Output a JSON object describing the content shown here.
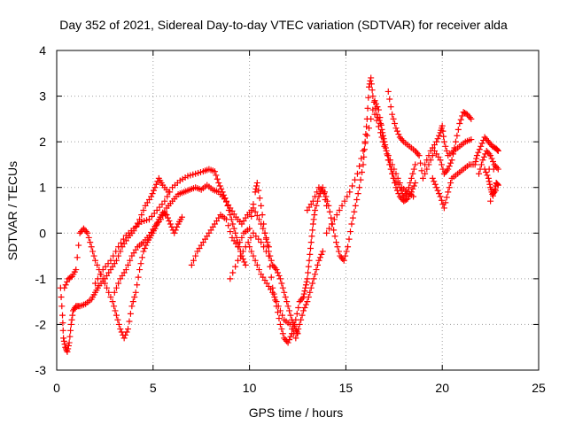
{
  "chart_data": {
    "type": "scatter",
    "title": "Day 352 of 2021, Sidereal Day-to-day VTEC variation (SDTVAR) for receiver alda",
    "xlabel": "GPS time / hours",
    "ylabel": "SDTVAR / TECUs",
    "xlim": [
      0,
      25
    ],
    "ylim": [
      -3,
      4
    ],
    "xticks": [
      "0",
      "5",
      "10",
      "15",
      "20",
      "25"
    ],
    "yticks": [
      "-3",
      "-2",
      "-1",
      "0",
      "1",
      "2",
      "3",
      "4"
    ],
    "grid": true,
    "marker": "+",
    "color": "#ff0000",
    "series": [
      {
        "name": "SDTVAR",
        "points": [
          [
            0.2,
            -1.2
          ],
          [
            0.3,
            -1.8
          ],
          [
            0.35,
            -2.3
          ],
          [
            0.45,
            -2.5
          ],
          [
            0.55,
            -2.6
          ],
          [
            0.65,
            -2.4
          ],
          [
            0.75,
            -2.0
          ],
          [
            0.85,
            -1.7
          ],
          [
            1.0,
            -1.6
          ],
          [
            1.2,
            -1.6
          ],
          [
            1.5,
            -1.55
          ],
          [
            1.8,
            -1.45
          ],
          [
            2.0,
            -1.3
          ],
          [
            2.2,
            -1.15
          ],
          [
            2.5,
            -1.0
          ],
          [
            2.8,
            -0.8
          ],
          [
            3.1,
            -0.6
          ],
          [
            3.4,
            -0.3
          ],
          [
            3.7,
            -0.1
          ],
          [
            4.0,
            0.05
          ],
          [
            4.3,
            0.3
          ],
          [
            4.6,
            0.6
          ],
          [
            4.9,
            0.8
          ],
          [
            5.1,
            1.0
          ],
          [
            5.3,
            1.2
          ],
          [
            5.5,
            1.05
          ],
          [
            5.8,
            0.9
          ],
          [
            0.4,
            -1.2
          ],
          [
            0.6,
            -1.0
          ],
          [
            0.8,
            -0.95
          ],
          [
            1.0,
            -0.8
          ],
          [
            1.2,
            0.0
          ],
          [
            1.4,
            0.1
          ],
          [
            1.6,
            0.0
          ],
          [
            1.8,
            -0.3
          ],
          [
            2.0,
            -0.6
          ],
          [
            2.3,
            -0.9
          ],
          [
            2.6,
            -1.2
          ],
          [
            2.9,
            -1.5
          ],
          [
            3.1,
            -1.8
          ],
          [
            3.3,
            -2.1
          ],
          [
            3.5,
            -2.3
          ],
          [
            3.7,
            -2.1
          ],
          [
            3.9,
            -1.6
          ],
          [
            4.1,
            -1.3
          ],
          [
            4.3,
            -0.8
          ],
          [
            4.5,
            -0.4
          ],
          [
            4.7,
            -0.2
          ],
          [
            4.9,
            -0.05
          ],
          [
            5.1,
            0.1
          ],
          [
            5.3,
            0.3
          ],
          [
            5.5,
            0.45
          ],
          [
            5.7,
            0.4
          ],
          [
            5.9,
            0.2
          ],
          [
            6.1,
            0.0
          ],
          [
            6.3,
            0.2
          ],
          [
            6.5,
            0.35
          ],
          [
            2.0,
            -1.1
          ],
          [
            2.4,
            -0.8
          ],
          [
            2.8,
            -0.6
          ],
          [
            3.2,
            -0.3
          ],
          [
            3.6,
            -0.05
          ],
          [
            4.0,
            0.1
          ],
          [
            4.4,
            0.25
          ],
          [
            4.8,
            0.3
          ],
          [
            5.2,
            0.5
          ],
          [
            5.6,
            0.7
          ],
          [
            6.0,
            1.0
          ],
          [
            6.4,
            1.15
          ],
          [
            6.8,
            1.25
          ],
          [
            7.2,
            1.3
          ],
          [
            7.6,
            1.35
          ],
          [
            7.9,
            1.4
          ],
          [
            8.2,
            1.35
          ],
          [
            8.4,
            1.1
          ],
          [
            8.6,
            0.9
          ],
          [
            8.8,
            0.7
          ],
          [
            9.0,
            0.4
          ],
          [
            9.2,
            0.1
          ],
          [
            9.4,
            -0.2
          ],
          [
            9.6,
            -0.5
          ],
          [
            9.8,
            -0.7
          ],
          [
            3.0,
            -1.3
          ],
          [
            3.3,
            -1.0
          ],
          [
            3.6,
            -0.8
          ],
          [
            3.9,
            -0.5
          ],
          [
            4.2,
            -0.3
          ],
          [
            4.5,
            -0.2
          ],
          [
            4.8,
            -0.05
          ],
          [
            5.1,
            0.15
          ],
          [
            5.4,
            0.3
          ],
          [
            5.7,
            0.55
          ],
          [
            6.0,
            0.7
          ],
          [
            6.3,
            0.85
          ],
          [
            6.6,
            0.9
          ],
          [
            6.9,
            0.95
          ],
          [
            7.2,
            1.0
          ],
          [
            7.5,
            0.95
          ],
          [
            7.8,
            1.05
          ],
          [
            8.1,
            0.95
          ],
          [
            8.4,
            0.9
          ],
          [
            8.7,
            0.75
          ],
          [
            9.0,
            0.55
          ],
          [
            9.3,
            0.35
          ],
          [
            9.6,
            0.2
          ],
          [
            9.9,
            0.4
          ],
          [
            10.2,
            0.55
          ],
          [
            10.5,
            0.3
          ],
          [
            10.8,
            0.0
          ],
          [
            11.0,
            -0.3
          ],
          [
            7.0,
            -0.7
          ],
          [
            7.3,
            -0.4
          ],
          [
            7.6,
            -0.2
          ],
          [
            7.9,
            0.0
          ],
          [
            8.2,
            0.2
          ],
          [
            8.5,
            0.4
          ],
          [
            8.8,
            0.3
          ],
          [
            9.1,
            -0.1
          ],
          [
            9.4,
            -0.3
          ],
          [
            9.7,
            0.0
          ],
          [
            10.0,
            0.1
          ],
          [
            10.3,
            0.9
          ],
          [
            10.4,
            1.1
          ],
          [
            10.6,
            0.6
          ],
          [
            10.8,
            0.0
          ],
          [
            11.0,
            -0.4
          ],
          [
            11.2,
            -0.7
          ],
          [
            11.4,
            -0.8
          ],
          [
            11.6,
            -1.0
          ],
          [
            11.8,
            -1.3
          ],
          [
            12.0,
            -1.6
          ],
          [
            12.2,
            -1.9
          ],
          [
            12.4,
            -2.1
          ],
          [
            12.5,
            -2.2
          ],
          [
            9.0,
            -1.0
          ],
          [
            9.4,
            -0.6
          ],
          [
            9.8,
            -0.3
          ],
          [
            10.2,
            0.0
          ],
          [
            10.6,
            -0.2
          ],
          [
            11.0,
            -0.5
          ],
          [
            11.2,
            -1.2
          ],
          [
            11.4,
            -1.6
          ],
          [
            11.6,
            -2.0
          ],
          [
            11.8,
            -2.3
          ],
          [
            12.0,
            -2.4
          ],
          [
            12.2,
            -2.2
          ],
          [
            12.4,
            -1.9
          ],
          [
            12.6,
            -1.5
          ],
          [
            12.8,
            -1.4
          ],
          [
            12.9,
            -1.2
          ],
          [
            13.0,
            -1.0
          ],
          [
            13.1,
            -0.6
          ],
          [
            13.2,
            -0.2
          ],
          [
            13.3,
            0.2
          ],
          [
            13.4,
            0.5
          ],
          [
            13.6,
            0.8
          ],
          [
            13.8,
            1.0
          ],
          [
            14.0,
            0.6
          ],
          [
            10.0,
            -0.3
          ],
          [
            10.3,
            -0.6
          ],
          [
            10.6,
            -0.9
          ],
          [
            10.9,
            -1.1
          ],
          [
            11.2,
            -1.3
          ],
          [
            11.5,
            -1.6
          ],
          [
            11.8,
            -1.9
          ],
          [
            12.1,
            -2.0
          ],
          [
            12.4,
            -2.3
          ],
          [
            12.6,
            -2.0
          ],
          [
            12.8,
            -1.7
          ],
          [
            13.0,
            -1.5
          ],
          [
            13.2,
            -1.2
          ],
          [
            13.4,
            -0.9
          ],
          [
            13.6,
            -0.6
          ],
          [
            13.8,
            -0.4
          ],
          [
            13.0,
            0.5
          ],
          [
            13.3,
            0.7
          ],
          [
            13.6,
            1.0
          ],
          [
            13.9,
            0.9
          ],
          [
            14.1,
            0.6
          ],
          [
            14.3,
            0.2
          ],
          [
            14.5,
            -0.2
          ],
          [
            14.7,
            -0.5
          ],
          [
            14.9,
            -0.6
          ],
          [
            15.1,
            -0.3
          ],
          [
            15.3,
            0.2
          ],
          [
            15.5,
            0.6
          ],
          [
            15.7,
            1.0
          ],
          [
            15.9,
            1.5
          ],
          [
            16.0,
            2.0
          ],
          [
            16.1,
            2.5
          ],
          [
            16.2,
            3.2
          ],
          [
            16.3,
            3.4
          ],
          [
            16.4,
            3.0
          ],
          [
            16.6,
            2.6
          ],
          [
            16.8,
            2.4
          ],
          [
            17.0,
            2.0
          ],
          [
            17.2,
            1.6
          ],
          [
            17.4,
            1.3
          ],
          [
            17.6,
            1.0
          ],
          [
            17.8,
            0.8
          ],
          [
            18.0,
            0.7
          ],
          [
            18.2,
            0.75
          ],
          [
            18.4,
            0.9
          ],
          [
            18.6,
            1.1
          ],
          [
            14.0,
            0.0
          ],
          [
            14.4,
            0.3
          ],
          [
            14.8,
            0.6
          ],
          [
            15.2,
            0.9
          ],
          [
            15.6,
            1.3
          ],
          [
            15.9,
            1.8
          ],
          [
            16.2,
            2.3
          ],
          [
            16.5,
            2.9
          ],
          [
            16.7,
            2.7
          ],
          [
            16.9,
            2.2
          ],
          [
            17.1,
            1.8
          ],
          [
            17.3,
            1.5
          ],
          [
            17.5,
            1.2
          ],
          [
            17.8,
            1.0
          ],
          [
            18.0,
            0.8
          ],
          [
            18.2,
            0.9
          ],
          [
            18.4,
            1.2
          ],
          [
            18.6,
            1.5
          ],
          [
            16.5,
            2.6
          ],
          [
            16.8,
            2.2
          ],
          [
            17.0,
            1.9
          ],
          [
            17.3,
            1.6
          ],
          [
            17.6,
            1.3
          ],
          [
            17.9,
            1.0
          ],
          [
            18.2,
            0.9
          ],
          [
            18.5,
            0.8
          ],
          [
            17.2,
            3.1
          ],
          [
            17.4,
            2.6
          ],
          [
            17.6,
            2.3
          ],
          [
            17.8,
            2.1
          ],
          [
            18.0,
            2.0
          ],
          [
            18.3,
            1.9
          ],
          [
            18.6,
            1.8
          ],
          [
            18.8,
            1.7
          ],
          [
            19.0,
            1.2
          ],
          [
            19.3,
            1.5
          ],
          [
            19.6,
            1.8
          ],
          [
            19.9,
            1.6
          ],
          [
            20.1,
            1.3
          ],
          [
            20.3,
            1.4
          ],
          [
            20.5,
            1.6
          ],
          [
            20.7,
            2.0
          ],
          [
            20.9,
            2.4
          ],
          [
            21.1,
            2.65
          ],
          [
            21.3,
            2.6
          ],
          [
            21.5,
            2.5
          ],
          [
            19.1,
            1.5
          ],
          [
            19.4,
            1.8
          ],
          [
            19.7,
            2.0
          ],
          [
            19.9,
            2.2
          ],
          [
            20.0,
            2.35
          ],
          [
            20.1,
            2.0
          ],
          [
            20.3,
            1.7
          ],
          [
            20.6,
            1.8
          ],
          [
            20.9,
            1.9
          ],
          [
            21.2,
            2.0
          ],
          [
            21.5,
            2.05
          ],
          [
            19.5,
            1.2
          ],
          [
            19.7,
            1.0
          ],
          [
            19.9,
            0.8
          ],
          [
            20.1,
            0.55
          ],
          [
            20.3,
            0.9
          ],
          [
            20.5,
            1.2
          ],
          [
            20.8,
            1.3
          ],
          [
            21.1,
            1.4
          ],
          [
            21.4,
            1.5
          ],
          [
            21.7,
            1.5
          ],
          [
            21.8,
            1.7
          ],
          [
            22.0,
            1.9
          ],
          [
            22.2,
            2.1
          ],
          [
            22.4,
            2.0
          ],
          [
            22.6,
            1.9
          ],
          [
            22.8,
            1.85
          ],
          [
            22.9,
            1.8
          ],
          [
            21.9,
            1.3
          ],
          [
            22.1,
            1.6
          ],
          [
            22.3,
            1.8
          ],
          [
            22.5,
            1.7
          ],
          [
            22.7,
            1.5
          ],
          [
            22.9,
            1.4
          ],
          [
            22.2,
            1.4
          ],
          [
            22.4,
            1.2
          ],
          [
            22.5,
            1.0
          ],
          [
            22.6,
            0.85
          ],
          [
            22.7,
            0.9
          ],
          [
            22.8,
            1.1
          ],
          [
            22.9,
            1.05
          ],
          [
            22.5,
            0.7
          ]
        ]
      }
    ]
  }
}
